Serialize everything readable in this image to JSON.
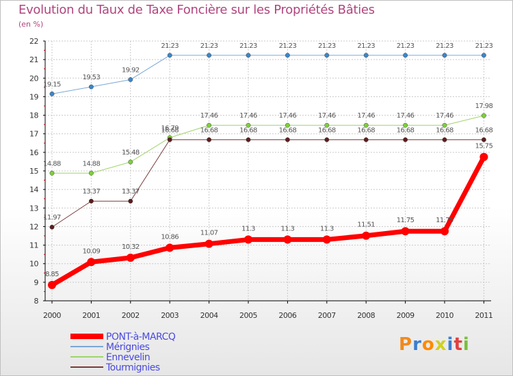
{
  "title": "Evolution du Taux de Taxe Foncière sur les Propriétés Bâties",
  "subtitle": "(en %)",
  "logo": "Proxiti",
  "colors": {
    "title": "#b0457e",
    "grid": "#c8c8c8",
    "axis": "#000000"
  },
  "chart_data": {
    "type": "line",
    "title": "Evolution du Taux de Taxe Foncière sur les Propriétés Bâties",
    "ylabel": "(en %)",
    "xlabel": "",
    "categories": [
      "2000",
      "2001",
      "2002",
      "2003",
      "2004",
      "2005",
      "2006",
      "2007",
      "2008",
      "2009",
      "2010",
      "2011"
    ],
    "ylim": [
      8,
      22
    ],
    "yticks": [
      8,
      9,
      10,
      11,
      12,
      13,
      14,
      15,
      16,
      17,
      18,
      19,
      20,
      21,
      22
    ],
    "grid": true,
    "legend_position": "bottom-left",
    "series": [
      {
        "name": "Mérignies",
        "color": "#7aa7d6",
        "marker": "#3d86c6",
        "width": 1,
        "values": [
          19.15,
          19.53,
          19.92,
          21.23,
          21.23,
          21.23,
          21.23,
          21.23,
          21.23,
          21.23,
          21.23,
          21.23
        ],
        "labels": [
          "19.15",
          "19.53",
          "19.92",
          "21.23",
          "21.23",
          "21.23",
          "21.23",
          "21.23",
          "21.23",
          "21.23",
          "21.23",
          "21.23"
        ]
      },
      {
        "name": "Ennevelin",
        "color": "#9fd46a",
        "marker": "#7fcf3c",
        "width": 1,
        "values": [
          14.88,
          14.88,
          15.48,
          16.79,
          17.46,
          17.46,
          17.46,
          17.46,
          17.46,
          17.46,
          17.46,
          17.98
        ],
        "labels": [
          "14.88",
          "14.88",
          "15.48",
          "16.79",
          "17.46",
          "17.46",
          "17.46",
          "17.46",
          "17.46",
          "17.46",
          "17.46",
          "17.98"
        ]
      },
      {
        "name": "Tourmignies",
        "color": "#7a3a3a",
        "marker": "#5b1d1d",
        "width": 1,
        "values": [
          11.97,
          13.37,
          13.37,
          16.68,
          16.68,
          16.68,
          16.68,
          16.68,
          16.68,
          16.68,
          16.68,
          16.68
        ],
        "labels": [
          "11.97",
          "13.37",
          "13.37",
          "16.68",
          "16.68",
          "16.68",
          "16.68",
          "16.68",
          "16.68",
          "16.68",
          "16.68",
          "16.68"
        ]
      },
      {
        "name": "PONT-à-MARCQ",
        "color": "#ff0000",
        "marker": "#ff0000",
        "width": 7,
        "values": [
          8.85,
          10.09,
          10.32,
          10.86,
          11.07,
          11.3,
          11.3,
          11.3,
          11.51,
          11.75,
          11.75,
          15.75
        ],
        "labels": [
          "8.85",
          "10.09",
          "10.32",
          "10.86",
          "11.07",
          "11.3",
          "11.3",
          "11.3",
          "11.51",
          "11.75",
          "11.75",
          "15.75"
        ]
      }
    ],
    "legend": [
      {
        "name": "PONT-à-MARCQ",
        "color": "#ff0000"
      },
      {
        "name": "Mérignies",
        "color": "#7aa7d6"
      },
      {
        "name": "Ennevelin",
        "color": "#9fd46a"
      },
      {
        "name": "Tourmignies",
        "color": "#7a3a3a"
      }
    ],
    "legend_text_color": "#4a4ae0"
  }
}
